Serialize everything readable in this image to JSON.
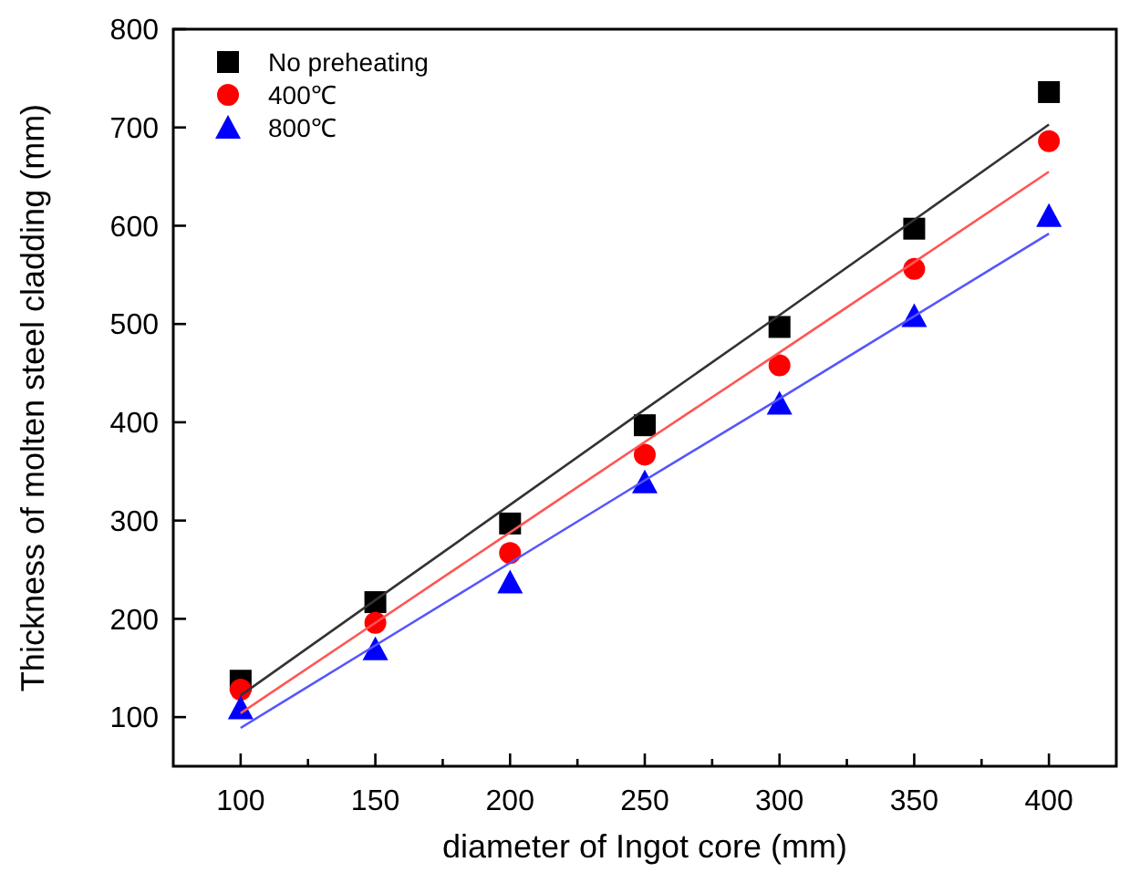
{
  "chart_data": {
    "type": "scatter",
    "xlabel": "diameter of  Ingot core (mm)",
    "ylabel": "Thickness of molten steel cladding (mm)",
    "x": [
      100,
      150,
      200,
      250,
      300,
      350,
      400
    ],
    "xlim": [
      75,
      425
    ],
    "xticks": [
      100,
      {
        "value": 125,
        "label": null
      },
      150,
      {
        "value": 175,
        "label": null
      },
      200,
      {
        "value": 225,
        "label": null
      },
      250,
      {
        "value": 275,
        "label": null
      },
      300,
      {
        "value": 325,
        "label": null
      },
      350,
      {
        "value": 375,
        "label": null
      },
      400
    ],
    "ylim": [
      50,
      800
    ],
    "yticks": [
      100,
      200,
      300,
      400,
      500,
      600,
      700,
      800
    ],
    "grid": false,
    "legend": "top left",
    "series": [
      {
        "name": "No preheating",
        "color": "#000000",
        "marker": "square",
        "values": [
          137,
          217,
          297,
          397,
          497,
          597,
          736
        ]
      },
      {
        "name": "400℃",
        "color": "#ff0000",
        "marker": "circle",
        "values": [
          128,
          196,
          267,
          367,
          458,
          556,
          686
        ]
      },
      {
        "name": "800℃",
        "color": "#0000ff",
        "marker": "triangle",
        "values": [
          109,
          169,
          237,
          339,
          419,
          508,
          610
        ]
      },
      {
        "type": "line",
        "color": "#333333",
        "values": [
          122,
          219,
          316,
          413,
          509,
          606,
          703
        ]
      },
      {
        "type": "line",
        "color": "#ff5555",
        "values": [
          104,
          196,
          288,
          380,
          471,
          563,
          655
        ]
      },
      {
        "type": "line",
        "color": "#5555ff",
        "values": [
          89,
          173,
          257,
          341,
          424,
          508,
          592
        ]
      }
    ]
  }
}
